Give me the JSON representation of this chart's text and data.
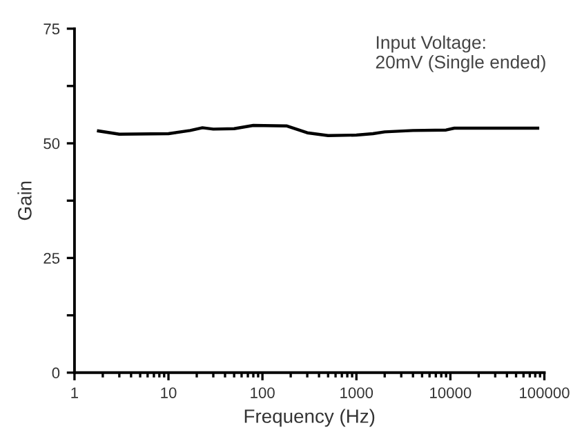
{
  "chart_data": {
    "type": "line",
    "xlabel": "Frequency (Hz)",
    "ylabel": "Gain",
    "annotations": [
      "Input Voltage:\n20mV (Single ended)"
    ],
    "log": "x",
    "grid": false,
    "marker": "none",
    "line_style": "solid",
    "xlim": [
      1,
      100000
    ],
    "xticks": [
      1,
      10,
      100,
      1000,
      10000,
      100000
    ],
    "ylim": [
      0,
      75
    ],
    "yticks": [
      0,
      {
        "value": 12.5,
        "label": null
      },
      25,
      {
        "value": 37.5,
        "label": null
      },
      50,
      {
        "value": 62.5,
        "label": null
      },
      75
    ],
    "series": [
      {
        "color": "#000000",
        "x": [
          1.8,
          3,
          10,
          17,
          23,
          30,
          50,
          80,
          180,
          300,
          500,
          1000,
          1500,
          2000,
          4000,
          9000,
          11000,
          85000
        ],
        "values": [
          52.7,
          52.0,
          52.1,
          52.8,
          53.4,
          53.1,
          53.2,
          53.9,
          53.8,
          52.3,
          51.7,
          51.8,
          52.1,
          52.5,
          52.8,
          52.9,
          53.3,
          53.3
        ]
      }
    ]
  }
}
